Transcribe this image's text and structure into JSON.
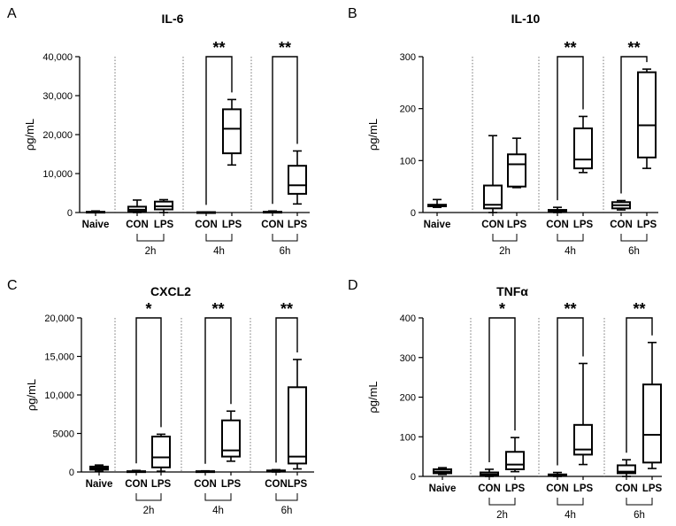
{
  "chart_data": [
    {
      "panel_letter": "A",
      "type": "box",
      "title": "IL-6",
      "ylabel": "ρg/mL",
      "ylim": [
        0,
        40000
      ],
      "yticks": [
        0,
        10000,
        20000,
        30000,
        40000
      ],
      "ytick_labels": [
        "0",
        "10,000",
        "20,000",
        "30,000",
        "40,000"
      ],
      "categories": [
        "Naive",
        "CON",
        "LPS",
        "CON",
        "LPS",
        "CON",
        "LPS"
      ],
      "groups": [
        {
          "label": "",
          "members": [
            0
          ]
        },
        {
          "label": "2h",
          "members": [
            1,
            2
          ]
        },
        {
          "label": "4h",
          "members": [
            3,
            4
          ]
        },
        {
          "label": "6h",
          "members": [
            5,
            6
          ]
        }
      ],
      "boxes": [
        {
          "min": 0,
          "q1": 0,
          "median": 100,
          "q3": 200,
          "max": 400
        },
        {
          "min": 0,
          "q1": 300,
          "median": 700,
          "q3": 1500,
          "max": 3200
        },
        {
          "min": 0,
          "q1": 800,
          "median": 1600,
          "q3": 2800,
          "max": 3300
        },
        {
          "min": 0,
          "q1": 0,
          "median": 50,
          "q3": 100,
          "max": 150
        },
        {
          "min": 12200,
          "q1": 15200,
          "median": 21500,
          "q3": 26500,
          "max": 29000
        },
        {
          "min": 0,
          "q1": 0,
          "median": 100,
          "q3": 200,
          "max": 400
        },
        {
          "min": 2200,
          "q1": 4800,
          "median": 7000,
          "q3": 12000,
          "max": 15800
        }
      ],
      "significance": [
        {
          "group": "2h",
          "label": ""
        },
        {
          "group": "4h",
          "label": "**"
        },
        {
          "group": "6h",
          "label": "**"
        }
      ]
    },
    {
      "panel_letter": "B",
      "type": "box",
      "title": "IL-10",
      "ylabel": "ρg/mL",
      "ylim": [
        0,
        300
      ],
      "yticks": [
        0,
        100,
        200,
        300
      ],
      "ytick_labels": [
        "0",
        "100",
        "200",
        "300"
      ],
      "categories": [
        "Naive",
        "CON",
        "LPS",
        "CON",
        "LPS",
        "CON",
        "LPS"
      ],
      "groups": [
        {
          "label": "",
          "members": [
            0
          ]
        },
        {
          "label": "2h",
          "members": [
            1,
            2
          ]
        },
        {
          "label": "4h",
          "members": [
            3,
            4
          ]
        },
        {
          "label": "6h",
          "members": [
            5,
            6
          ]
        }
      ],
      "boxes": [
        {
          "min": 10,
          "q1": 12,
          "median": 13,
          "q3": 15,
          "max": 25
        },
        {
          "min": 0,
          "q1": 8,
          "median": 15,
          "q3": 52,
          "max": 148
        },
        {
          "min": 48,
          "q1": 50,
          "median": 93,
          "q3": 112,
          "max": 143
        },
        {
          "min": 0,
          "q1": 1,
          "median": 3,
          "q3": 5,
          "max": 10
        },
        {
          "min": 77,
          "q1": 85,
          "median": 102,
          "q3": 162,
          "max": 185
        },
        {
          "min": 5,
          "q1": 8,
          "median": 14,
          "q3": 20,
          "max": 23
        },
        {
          "min": 85,
          "q1": 106,
          "median": 168,
          "q3": 270,
          "max": 276
        }
      ],
      "significance": [
        {
          "group": "2h",
          "label": ""
        },
        {
          "group": "4h",
          "label": "**"
        },
        {
          "group": "6h",
          "label": "**"
        }
      ]
    },
    {
      "panel_letter": "C",
      "type": "box",
      "title": "CXCL2",
      "ylabel": "ρg/mL",
      "ylim": [
        0,
        20000
      ],
      "yticks": [
        0,
        5000,
        10000,
        15000,
        20000
      ],
      "ytick_labels": [
        "0",
        "5000",
        "10,000",
        "15,000",
        "20,000"
      ],
      "categories": [
        "Naive",
        "CON",
        "LPS",
        "CON",
        "LPS",
        "CON",
        "LPS"
      ],
      "groups": [
        {
          "label": "",
          "members": [
            0
          ]
        },
        {
          "label": "2h",
          "members": [
            1,
            2
          ]
        },
        {
          "label": "4h",
          "members": [
            3,
            4
          ]
        },
        {
          "label": "6h",
          "members": [
            5,
            6
          ]
        }
      ],
      "boxes": [
        {
          "min": 100,
          "q1": 300,
          "median": 500,
          "q3": 700,
          "max": 900
        },
        {
          "min": 0,
          "q1": 0,
          "median": 50,
          "q3": 100,
          "max": 200
        },
        {
          "min": 100,
          "q1": 600,
          "median": 1900,
          "q3": 4600,
          "max": 4900
        },
        {
          "min": 0,
          "q1": 0,
          "median": 50,
          "q3": 100,
          "max": 150
        },
        {
          "min": 1400,
          "q1": 2000,
          "median": 2800,
          "q3": 6700,
          "max": 7900
        },
        {
          "min": 0,
          "q1": 50,
          "median": 100,
          "q3": 200,
          "max": 300
        },
        {
          "min": 400,
          "q1": 1100,
          "median": 2000,
          "q3": 11000,
          "max": 14600
        }
      ],
      "significance": [
        {
          "group": "2h",
          "label": "*"
        },
        {
          "group": "4h",
          "label": "**"
        },
        {
          "group": "6h",
          "label": "**"
        }
      ]
    },
    {
      "panel_letter": "D",
      "type": "box",
      "title": "TNFα",
      "ylabel": "ρg/mL",
      "ylim": [
        0,
        400
      ],
      "yticks": [
        0,
        100,
        200,
        300,
        400
      ],
      "ytick_labels": [
        "0",
        "100",
        "200",
        "300",
        "400"
      ],
      "categories": [
        "Naive",
        "CON",
        "LPS",
        "CON",
        "LPS",
        "CON",
        "LPS"
      ],
      "groups": [
        {
          "label": "",
          "members": [
            0
          ]
        },
        {
          "label": "2h",
          "members": [
            1,
            2
          ]
        },
        {
          "label": "4h",
          "members": [
            3,
            4
          ]
        },
        {
          "label": "6h",
          "members": [
            5,
            6
          ]
        }
      ],
      "boxes": [
        {
          "min": 5,
          "q1": 8,
          "median": 12,
          "q3": 18,
          "max": 22
        },
        {
          "min": 0,
          "q1": 2,
          "median": 5,
          "q3": 10,
          "max": 18
        },
        {
          "min": 12,
          "q1": 18,
          "median": 30,
          "q3": 62,
          "max": 98
        },
        {
          "min": 0,
          "q1": 2,
          "median": 3,
          "q3": 5,
          "max": 10
        },
        {
          "min": 30,
          "q1": 55,
          "median": 68,
          "q3": 130,
          "max": 285
        },
        {
          "min": 0,
          "q1": 8,
          "median": 12,
          "q3": 28,
          "max": 42
        },
        {
          "min": 20,
          "q1": 35,
          "median": 105,
          "q3": 232,
          "max": 338
        }
      ],
      "significance": [
        {
          "group": "2h",
          "label": "*"
        },
        {
          "group": "4h",
          "label": "**"
        },
        {
          "group": "6h",
          "label": "**"
        }
      ]
    }
  ]
}
